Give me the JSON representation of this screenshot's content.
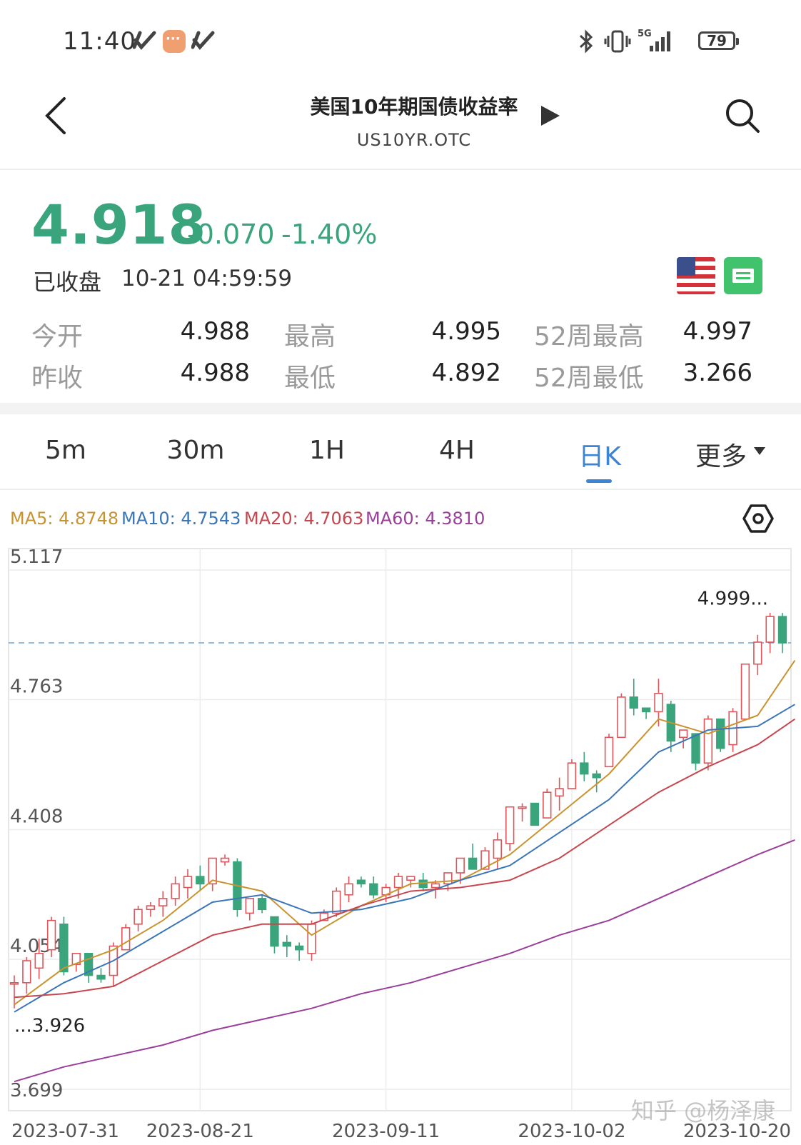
{
  "status_bar": {
    "time": "11:40",
    "battery": "79",
    "network": "5G",
    "icons": [
      "app-notification-icon",
      "message-icon",
      "app-notification-icon",
      "bluetooth-icon",
      "vibrate-icon",
      "signal-icon",
      "battery-icon"
    ]
  },
  "header": {
    "title": "美国10年期国债收益率",
    "subtitle": "US10YR.OTC",
    "back_icon": "back-arrow-icon",
    "play_icon": "play-icon",
    "search_icon": "search-icon"
  },
  "quote": {
    "price": "4.918",
    "change": "-0.070",
    "change_pct": "-1.40%",
    "status": "已收盘",
    "timestamp": "10-21 04:59:59",
    "color_down": "#3aa57c",
    "color_up": "#e0555a"
  },
  "stats": [
    {
      "label": "今开",
      "value": "4.988"
    },
    {
      "label": "最高",
      "value": "4.995"
    },
    {
      "label": "52周最高",
      "value": "4.997"
    },
    {
      "label": "昨收",
      "value": "4.988"
    },
    {
      "label": "最低",
      "value": "4.892"
    },
    {
      "label": "52周最低",
      "value": "3.266"
    }
  ],
  "tabs": {
    "items": [
      "5m",
      "30m",
      "1H",
      "4H",
      "日K",
      "更多"
    ],
    "active": "日K",
    "more_icon": "dropdown-triangle-icon"
  },
  "ma_legend": [
    {
      "label": "MA5:",
      "value": "4.8748",
      "color": "#c9932f"
    },
    {
      "label": "MA10:",
      "value": "4.7543",
      "color": "#3b76b9"
    },
    {
      "label": "MA20:",
      "value": "4.7063",
      "color": "#c8474f"
    },
    {
      "label": "MA60:",
      "value": "4.3810",
      "color": "#9a3f9a"
    }
  ],
  "chart_settings_icon": "hexagon-settings-icon",
  "chart_data": {
    "type": "candlestick",
    "y_ticks": [
      "5.117",
      "4.763",
      "4.408",
      "4.054",
      "3.699"
    ],
    "ylim": [
      3.699,
      5.117
    ],
    "x_ticks": [
      "2023-07-31",
      "2023-08-21",
      "2023-09-11",
      "2023-10-02",
      "2023-10-20"
    ],
    "last_price_line": 4.918,
    "max_label": "4.999...",
    "min_label": "...3.926",
    "candles": [
      {
        "o": 3.99,
        "h": 4.01,
        "l": 3.92,
        "c": 3.99
      },
      {
        "o": 3.99,
        "h": 4.06,
        "l": 3.96,
        "c": 4.05
      },
      {
        "o": 4.03,
        "h": 4.11,
        "l": 4.0,
        "c": 4.07
      },
      {
        "o": 4.08,
        "h": 4.17,
        "l": 4.06,
        "c": 4.16
      },
      {
        "o": 4.15,
        "h": 4.17,
        "l": 4.01,
        "c": 4.02
      },
      {
        "o": 4.04,
        "h": 4.07,
        "l": 4.02,
        "c": 4.07
      },
      {
        "o": 4.07,
        "h": 4.07,
        "l": 3.99,
        "c": 4.01
      },
      {
        "o": 4.01,
        "h": 4.03,
        "l": 3.99,
        "c": 4.0
      },
      {
        "o": 4.01,
        "h": 4.1,
        "l": 3.98,
        "c": 4.09
      },
      {
        "o": 4.08,
        "h": 4.15,
        "l": 4.08,
        "c": 4.14
      },
      {
        "o": 4.15,
        "h": 4.2,
        "l": 4.13,
        "c": 4.19
      },
      {
        "o": 4.19,
        "h": 4.21,
        "l": 4.17,
        "c": 4.2
      },
      {
        "o": 4.2,
        "h": 4.24,
        "l": 4.17,
        "c": 4.22
      },
      {
        "o": 4.22,
        "h": 4.28,
        "l": 4.2,
        "c": 4.26
      },
      {
        "o": 4.25,
        "h": 4.3,
        "l": 4.22,
        "c": 4.28
      },
      {
        "o": 4.28,
        "h": 4.31,
        "l": 4.24,
        "c": 4.26
      },
      {
        "o": 4.26,
        "h": 4.33,
        "l": 4.24,
        "c": 4.33
      },
      {
        "o": 4.32,
        "h": 4.34,
        "l": 4.31,
        "c": 4.33
      },
      {
        "o": 4.32,
        "h": 4.33,
        "l": 4.17,
        "c": 4.19
      },
      {
        "o": 4.18,
        "h": 4.22,
        "l": 4.16,
        "c": 4.22
      },
      {
        "o": 4.22,
        "h": 4.23,
        "l": 4.18,
        "c": 4.19
      },
      {
        "o": 4.17,
        "h": 4.17,
        "l": 4.07,
        "c": 4.09
      },
      {
        "o": 4.1,
        "h": 4.12,
        "l": 4.06,
        "c": 4.09
      },
      {
        "o": 4.09,
        "h": 4.1,
        "l": 4.05,
        "c": 4.08
      },
      {
        "o": 4.07,
        "h": 4.16,
        "l": 4.05,
        "c": 4.15
      },
      {
        "o": 4.16,
        "h": 4.19,
        "l": 4.16,
        "c": 4.18
      },
      {
        "o": 4.18,
        "h": 4.25,
        "l": 4.17,
        "c": 4.24
      },
      {
        "o": 4.23,
        "h": 4.28,
        "l": 4.21,
        "c": 4.26
      },
      {
        "o": 4.27,
        "h": 4.28,
        "l": 4.25,
        "c": 4.26
      },
      {
        "o": 4.26,
        "h": 4.28,
        "l": 4.22,
        "c": 4.23
      },
      {
        "o": 4.23,
        "h": 4.26,
        "l": 4.21,
        "c": 4.25
      },
      {
        "o": 4.25,
        "h": 4.29,
        "l": 4.22,
        "c": 4.28
      },
      {
        "o": 4.27,
        "h": 4.28,
        "l": 4.25,
        "c": 4.28
      },
      {
        "o": 4.27,
        "h": 4.29,
        "l": 4.24,
        "c": 4.25
      },
      {
        "o": 4.25,
        "h": 4.27,
        "l": 4.22,
        "c": 4.26
      },
      {
        "o": 4.26,
        "h": 4.29,
        "l": 4.24,
        "c": 4.29
      },
      {
        "o": 4.29,
        "h": 4.33,
        "l": 4.26,
        "c": 4.33
      },
      {
        "o": 4.33,
        "h": 4.37,
        "l": 4.3,
        "c": 4.3
      },
      {
        "o": 4.3,
        "h": 4.36,
        "l": 4.3,
        "c": 4.35
      },
      {
        "o": 4.33,
        "h": 4.4,
        "l": 4.3,
        "c": 4.38
      },
      {
        "o": 4.37,
        "h": 4.47,
        "l": 4.35,
        "c": 4.47
      },
      {
        "o": 4.47,
        "h": 4.48,
        "l": 4.43,
        "c": 4.47
      },
      {
        "o": 4.48,
        "h": 4.48,
        "l": 4.42,
        "c": 4.42
      },
      {
        "o": 4.44,
        "h": 4.52,
        "l": 4.44,
        "c": 4.51
      },
      {
        "o": 4.5,
        "h": 4.55,
        "l": 4.46,
        "c": 4.52
      },
      {
        "o": 4.52,
        "h": 4.6,
        "l": 4.52,
        "c": 4.59
      },
      {
        "o": 4.59,
        "h": 4.62,
        "l": 4.54,
        "c": 4.56
      },
      {
        "o": 4.56,
        "h": 4.57,
        "l": 4.51,
        "c": 4.55
      },
      {
        "o": 4.58,
        "h": 4.67,
        "l": 4.58,
        "c": 4.66
      },
      {
        "o": 4.66,
        "h": 4.78,
        "l": 4.66,
        "c": 4.77
      },
      {
        "o": 4.77,
        "h": 4.82,
        "l": 4.72,
        "c": 4.74
      },
      {
        "o": 4.74,
        "h": 4.74,
        "l": 4.71,
        "c": 4.73
      },
      {
        "o": 4.73,
        "h": 4.82,
        "l": 4.69,
        "c": 4.78
      },
      {
        "o": 4.75,
        "h": 4.76,
        "l": 4.62,
        "c": 4.65
      },
      {
        "o": 4.66,
        "h": 4.68,
        "l": 4.63,
        "c": 4.68
      },
      {
        "o": 4.67,
        "h": 4.67,
        "l": 4.57,
        "c": 4.59
      },
      {
        "o": 4.59,
        "h": 4.72,
        "l": 4.57,
        "c": 4.71
      },
      {
        "o": 4.71,
        "h": 4.71,
        "l": 4.62,
        "c": 4.63
      },
      {
        "o": 4.64,
        "h": 4.74,
        "l": 4.62,
        "c": 4.73
      },
      {
        "o": 4.71,
        "h": 4.86,
        "l": 4.71,
        "c": 4.86
      },
      {
        "o": 4.86,
        "h": 4.94,
        "l": 4.83,
        "c": 4.92
      },
      {
        "o": 4.92,
        "h": 5.0,
        "l": 4.89,
        "c": 4.99
      },
      {
        "o": 4.99,
        "h": 5.0,
        "l": 4.89,
        "c": 4.918
      }
    ],
    "ma_series": [
      {
        "name": "MA5",
        "color": "#c9932f",
        "x": [
          0,
          4,
          8,
          12,
          16,
          20,
          24,
          28,
          32,
          36,
          40,
          44,
          48,
          52,
          56,
          60,
          63
        ],
        "y": [
          3.93,
          4.03,
          4.08,
          4.16,
          4.27,
          4.24,
          4.12,
          4.2,
          4.26,
          4.27,
          4.34,
          4.45,
          4.56,
          4.71,
          4.67,
          4.72,
          4.87
        ]
      },
      {
        "name": "MA10",
        "color": "#3b76b9",
        "x": [
          0,
          4,
          8,
          12,
          16,
          20,
          24,
          28,
          32,
          36,
          40,
          44,
          48,
          52,
          56,
          60,
          63
        ],
        "y": [
          3.91,
          3.99,
          4.05,
          4.13,
          4.21,
          4.23,
          4.18,
          4.19,
          4.22,
          4.27,
          4.31,
          4.4,
          4.49,
          4.62,
          4.68,
          4.69,
          4.75
        ]
      },
      {
        "name": "MA20",
        "color": "#c8474f",
        "x": [
          0,
          4,
          8,
          12,
          16,
          20,
          24,
          28,
          32,
          36,
          40,
          44,
          48,
          52,
          56,
          60,
          63
        ],
        "y": [
          3.95,
          3.96,
          3.98,
          4.05,
          4.12,
          4.15,
          4.15,
          4.2,
          4.24,
          4.25,
          4.27,
          4.33,
          4.42,
          4.51,
          4.58,
          4.64,
          4.71
        ]
      },
      {
        "name": "MA60",
        "color": "#9a3f9a",
        "x": [
          0,
          4,
          8,
          12,
          16,
          20,
          24,
          28,
          32,
          36,
          40,
          44,
          48,
          52,
          56,
          60,
          63
        ],
        "y": [
          3.72,
          3.76,
          3.79,
          3.82,
          3.86,
          3.89,
          3.92,
          3.96,
          3.99,
          4.03,
          4.07,
          4.12,
          4.16,
          4.22,
          4.28,
          4.34,
          4.38
        ]
      }
    ],
    "grid": true
  },
  "watermark": "知乎 @杨泽康"
}
